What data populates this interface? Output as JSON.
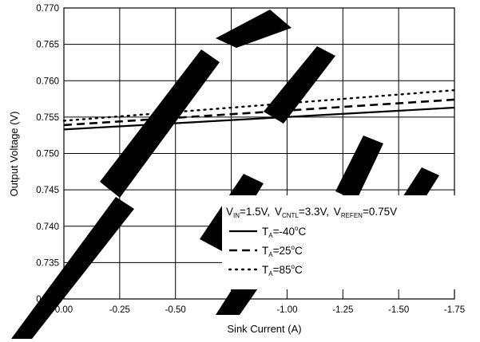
{
  "chart_data": {
    "type": "line",
    "xlabel": "Sink Current (A)",
    "ylabel": "Output Voltage (V)",
    "xlim": [
      0.0,
      -1.75
    ],
    "ylim": [
      0.73,
      0.77
    ],
    "x_ticks": [
      "0.00",
      "-0.25",
      "-0.50",
      "-0.75",
      "-1.00",
      "-1.25",
      "-1.50",
      "-1.75"
    ],
    "y_ticks": [
      "0.730",
      "0.735",
      "0.740",
      "0.745",
      "0.750",
      "0.755",
      "0.760",
      "0.765",
      "0.770"
    ],
    "grid": true,
    "legend_placement": "bottom-right",
    "conditions": {
      "v_in": "V",
      "v_in_sub": "IN",
      "v_in_val": "=1.5V,",
      "v_cntl": "V",
      "v_cntl_sub": "CNTL",
      "v_cntl_val": "=3.3V,",
      "v_refen": "V",
      "v_refen_sub": "REFEN",
      "v_refen_val": "=0.75V"
    },
    "series": [
      {
        "name": "TA=-40°C",
        "label_main": "T",
        "label_sub": "A",
        "label_val": "=-40",
        "label_sup": "o",
        "label_unit": "C",
        "style": "solid",
        "x": [
          0.0,
          -1.75
        ],
        "y": [
          0.7533,
          0.7563
        ]
      },
      {
        "name": "TA=25°C",
        "label_main": "T",
        "label_sub": "A",
        "label_val": "=25",
        "label_sup": "o",
        "label_unit": "C",
        "style": "dashed",
        "x": [
          0.0,
          -1.75
        ],
        "y": [
          0.7539,
          0.7574
        ]
      },
      {
        "name": "TA=85°C",
        "label_main": "T",
        "label_sub": "A",
        "label_val": "=85",
        "label_sup": "o",
        "label_unit": "C",
        "style": "dotted",
        "x": [
          0.0,
          -1.75
        ],
        "y": [
          0.7545,
          0.7587
        ]
      }
    ]
  },
  "watermark": "RECOMMENDED FOR NEW DESIGN",
  "colors": {
    "line": "#000000",
    "grid": "#000000",
    "watermark": "#000000"
  }
}
